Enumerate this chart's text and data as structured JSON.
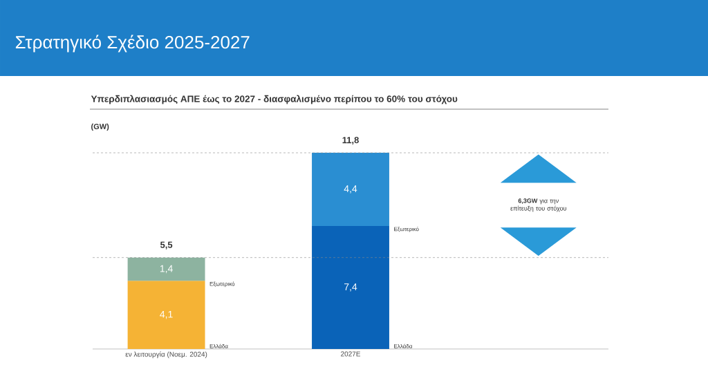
{
  "chart_data": {
    "type": "bar",
    "title": "Στρατηγικό Σχέδιο 2025-2027",
    "subtitle": "Υπερδιπλασιασμός ΑΠΕ έως το 2027 - διασφαλισμένο περίπου το 60% του στόχου",
    "ylabel": "(GW)",
    "categories": [
      "εν λειτουργία (Νοεμ. 2024)",
      "2027E"
    ],
    "stacked": true,
    "series": [
      {
        "name": "Ελλάδα",
        "colors": [
          "#f5b335",
          "#0a63b8"
        ],
        "values": [
          4.1,
          7.4
        ],
        "value_labels": [
          "4,1",
          "7,4"
        ]
      },
      {
        "name": "Εξωτερικό",
        "colors": [
          "#8db3a0",
          "#2a8ed2"
        ],
        "values": [
          1.4,
          4.4
        ],
        "value_labels": [
          "1,4",
          "4,4"
        ]
      }
    ],
    "totals": [
      "5,5",
      "11,8"
    ],
    "ref_lines": [
      {
        "axis": "y",
        "value": 5.5,
        "line_style": "dashed",
        "color": "#888888"
      },
      {
        "axis": "y",
        "value": 11.8,
        "line_style": "dashed",
        "color": "#888888"
      }
    ],
    "annotations": [
      "**6,3GW** για την επίτευξη του στόχου"
    ]
  }
}
